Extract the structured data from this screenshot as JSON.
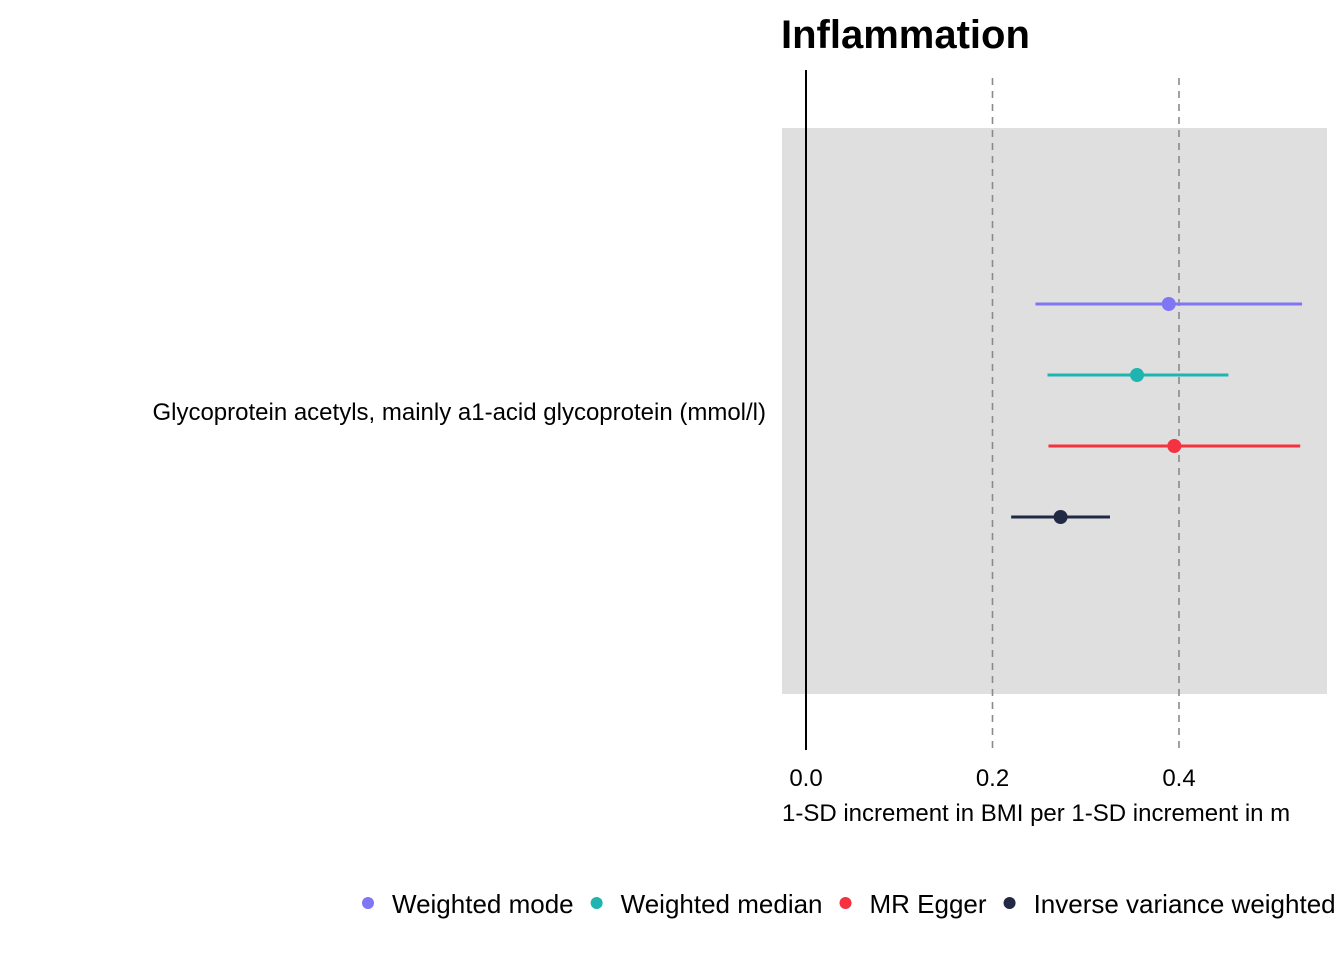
{
  "chart_data": {
    "type": "forest",
    "title": "Inflammation",
    "xlabel": "1-SD increment in BMI per 1-SD increment in m",
    "x_ticks": [
      0.0,
      0.2,
      0.4
    ],
    "x_tick_labels": [
      "0.0",
      "0.2",
      "0.4"
    ],
    "xlim": [
      -0.027,
      0.56
    ],
    "reference_line": 0,
    "dashed_lines": [
      0.2,
      0.4
    ],
    "categories": [
      "Glycoprotein acetyls, mainly a1-acid glycoprotein (mmol/l)"
    ],
    "legend_position": "bottom",
    "series": [
      {
        "name": "Weighted mode",
        "color": "#7F75F5",
        "estimate": 0.389,
        "lower": 0.246,
        "upper": 0.532
      },
      {
        "name": "Weighted median",
        "color": "#1EB5B0",
        "estimate": 0.355,
        "lower": 0.259,
        "upper": 0.453
      },
      {
        "name": "MR Egger",
        "color": "#F53240",
        "estimate": 0.395,
        "lower": 0.26,
        "upper": 0.53
      },
      {
        "name": "Inverse variance weighted",
        "color": "#222944",
        "estimate": 0.273,
        "lower": 0.22,
        "upper": 0.326
      }
    ]
  }
}
